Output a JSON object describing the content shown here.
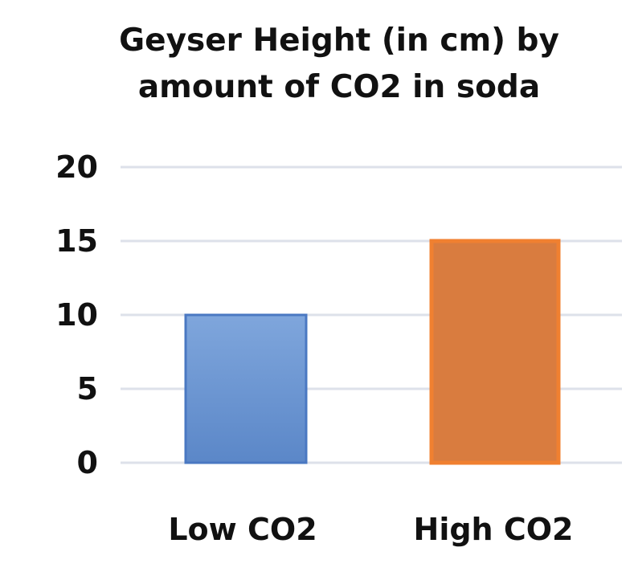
{
  "chart_data": {
    "type": "bar",
    "title": "Geyser Height (in cm) by amount of CO2 in soda",
    "title_lines": [
      "Geyser Height (in cm) by",
      "amount of CO2 in soda"
    ],
    "categories": [
      "Low CO2",
      "High CO2"
    ],
    "values": [
      10,
      15
    ],
    "xlabel": "",
    "ylabel": "",
    "ylim": [
      0,
      20
    ],
    "yticks": [
      "0",
      "5",
      "10",
      "15",
      "20"
    ],
    "grid": true,
    "legend": "none",
    "colors": {
      "bars": [
        "#6f9bd6",
        "#d97c3f"
      ],
      "bar_borders": [
        "#4a78c2",
        "#f08030"
      ],
      "gridline": "#dde1ea",
      "text": "#111111"
    }
  }
}
